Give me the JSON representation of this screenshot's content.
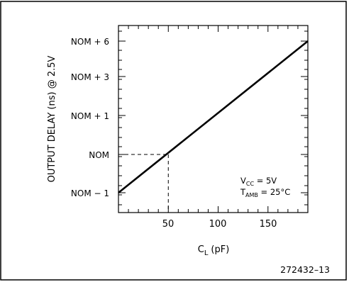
{
  "chart_data": {
    "type": "line",
    "xlabel": "C",
    "xlabel_sub": "L",
    "xlabel_unit": "(pF)",
    "ylabel": "OUTPUT DELAY (ns) @ 2.5V",
    "xlim": [
      0,
      190
    ],
    "x_ticks": [
      50,
      100,
      150
    ],
    "x_tick_labels": [
      "50",
      "100",
      "150"
    ],
    "y_tick_labels": [
      "NOM − 1",
      "NOM",
      "NOM + 1",
      "NOM + 3",
      "NOM + 6"
    ],
    "series": [
      {
        "x": [
          0,
          190
        ],
        "y_relative_to_nom": [
          -1,
          6
        ]
      }
    ],
    "reference": {
      "x": 50,
      "y_label": "NOM"
    },
    "annotation": {
      "vcc_main": "V",
      "vcc_sub": "CC",
      "vcc_rest": " = 5V",
      "tamb_main": "T",
      "tamb_sub": "AMB",
      "tamb_rest": " = 25°C"
    },
    "grid": false
  },
  "figure_id": "272432–13",
  "colors": {
    "line": "#000000",
    "frame": "#000000",
    "background": "#ffffff"
  }
}
